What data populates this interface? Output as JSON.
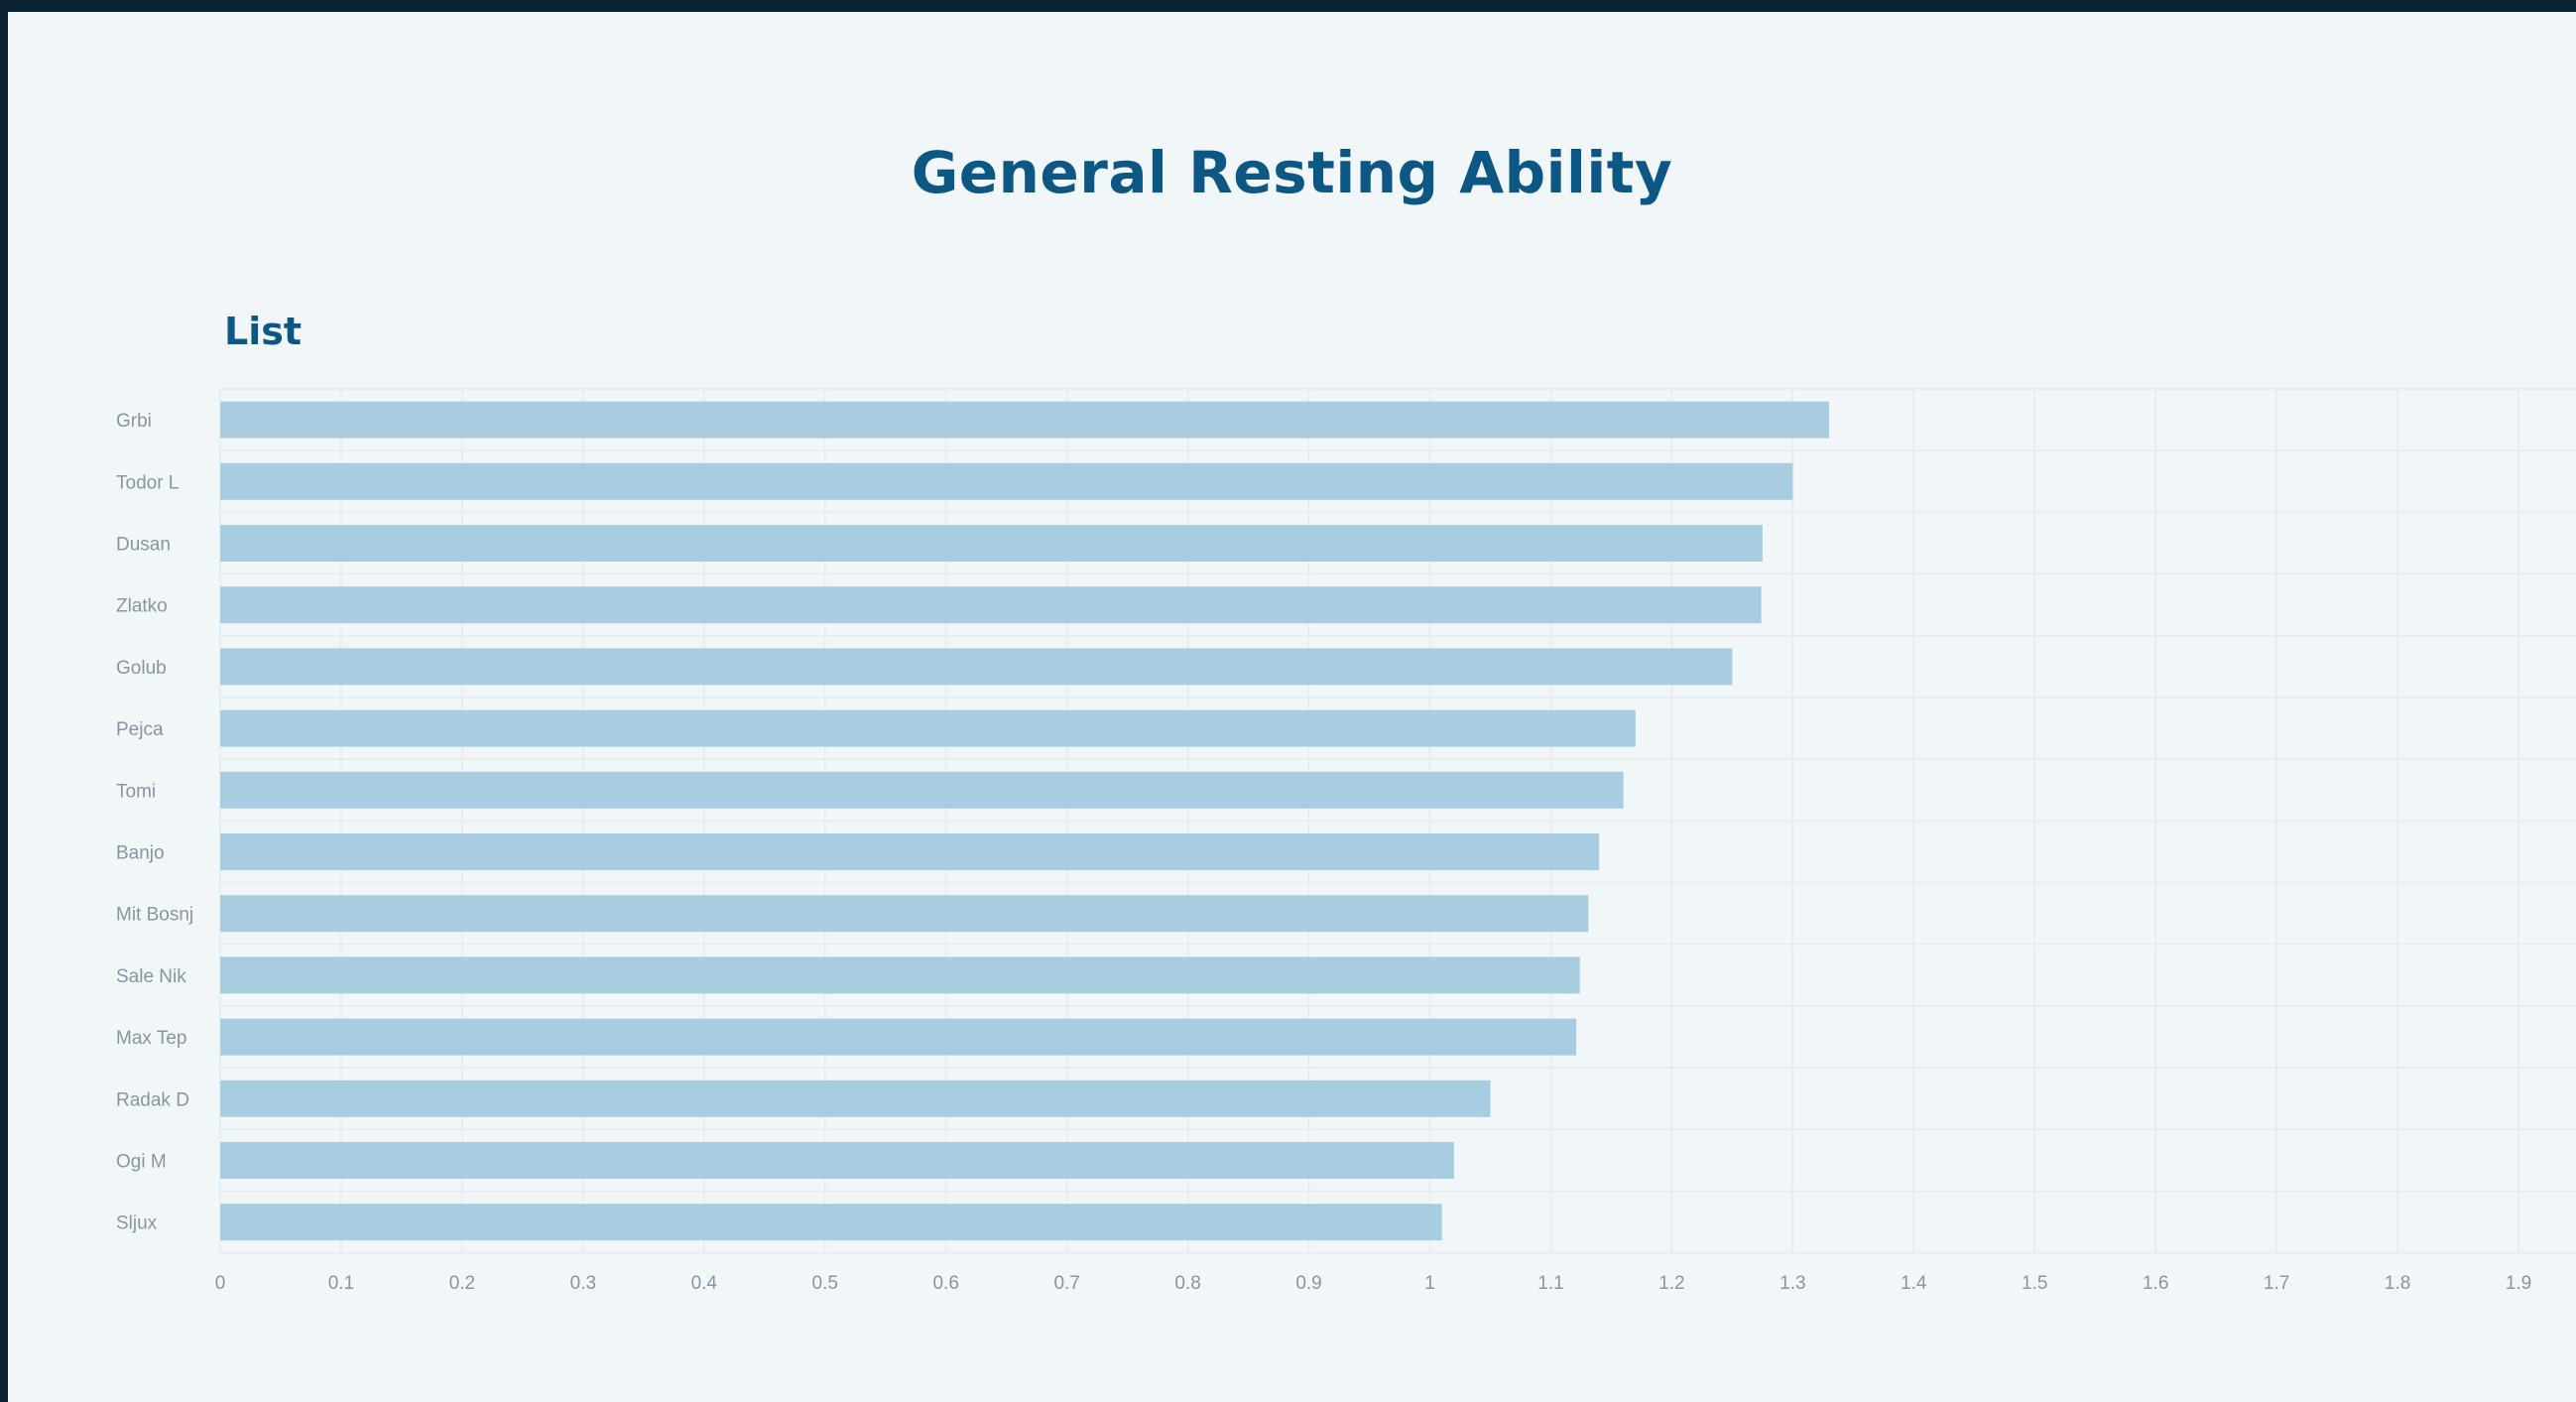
{
  "page": {
    "title": "General Resting Ability",
    "section_title": "List"
  },
  "colors": {
    "background": "#f1f6f9",
    "bar": "#a8cde1",
    "title": "#0c5784",
    "grid": "#e6ebee",
    "label": "#8a959d"
  },
  "chart_data": {
    "type": "bar",
    "orientation": "horizontal",
    "title": "List",
    "xlabel": "",
    "ylabel": "",
    "xlim": [
      0,
      1.9
    ],
    "grid": true,
    "categories": [
      "Grbi",
      "Todor L",
      "Dusan",
      "Zlatko",
      "Golub",
      "Pejca",
      "Tomi",
      "Banjo",
      "Mit Bosnj",
      "Sale Nik",
      "Max Tep",
      "Radak D",
      "Ogi M",
      "Sljux"
    ],
    "values": [
      1.33,
      1.3,
      1.275,
      1.274,
      1.25,
      1.17,
      1.16,
      1.14,
      1.131,
      1.124,
      1.121,
      1.05,
      1.02,
      1.01
    ],
    "x_ticks": [
      "0",
      "0.1",
      "0.2",
      "0.3",
      "0.4",
      "0.5",
      "0.6",
      "0.7",
      "0.8",
      "0.9",
      "1",
      "1.1",
      "1.2",
      "1.3",
      "1.4",
      "1.5",
      "1.6",
      "1.7",
      "1.8",
      "1.9"
    ]
  }
}
